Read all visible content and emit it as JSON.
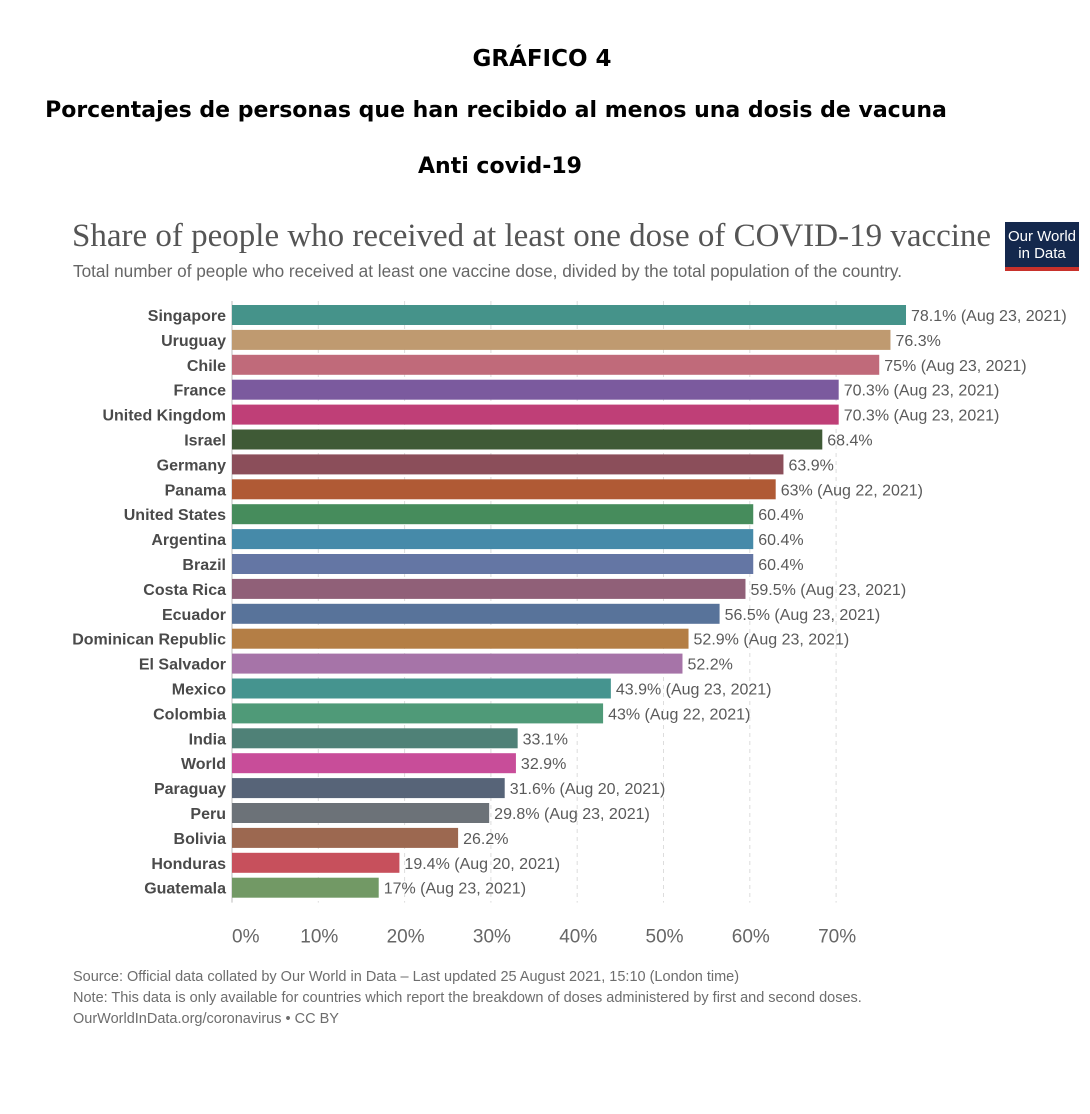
{
  "header": {
    "figure_label": "GRÁFICO 4",
    "title_line1": "Porcentajes de personas que han recibido al menos una dosis de vacuna",
    "title_line2": "Anti covid-19"
  },
  "logo": {
    "line1": "Our World",
    "line2": "in Data"
  },
  "footer": {
    "source": "Source: Official data collated by Our World in Data – Last updated 25 August 2021, 15:10 (London time)",
    "note": "Note: This data is only available for countries which report the breakdown of doses administered by first and second doses.",
    "url": "OurWorldInData.org/coronavirus • CC BY"
  },
  "chart_data": {
    "type": "bar",
    "orientation": "horizontal",
    "title": "Share of people who received at least one dose of COVID-19 vaccine",
    "subtitle": "Total number of people who received at least one vaccine dose, divided by the total population of the country.",
    "xlim": [
      0,
      80
    ],
    "xticks": [
      "0%",
      "10%",
      "20%",
      "30%",
      "40%",
      "50%",
      "60%",
      "70%"
    ],
    "grid": true,
    "categories": [
      "Singapore",
      "Uruguay",
      "Chile",
      "France",
      "United Kingdom",
      "Israel",
      "Germany",
      "Panama",
      "United States",
      "Argentina",
      "Brazil",
      "Costa Rica",
      "Ecuador",
      "Dominican Republic",
      "El Salvador",
      "Mexico",
      "Colombia",
      "India",
      "World",
      "Paraguay",
      "Peru",
      "Bolivia",
      "Honduras",
      "Guatemala"
    ],
    "values": [
      78.1,
      76.3,
      75,
      70.3,
      70.3,
      68.4,
      63.9,
      63,
      60.4,
      60.4,
      60.4,
      59.5,
      56.5,
      52.9,
      52.2,
      43.9,
      43,
      33.1,
      32.9,
      31.6,
      29.8,
      26.2,
      19.4,
      17
    ],
    "labels": [
      "78.1% (Aug 23, 2021)",
      "76.3%",
      "75% (Aug 23, 2021)",
      "70.3% (Aug 23, 2021)",
      "70.3% (Aug 23, 2021)",
      "68.4%",
      "63.9%",
      "63% (Aug 22, 2021)",
      "60.4%",
      "60.4%",
      "60.4%",
      "59.5% (Aug 23, 2021)",
      "56.5% (Aug 23, 2021)",
      "52.9% (Aug 23, 2021)",
      "52.2%",
      "43.9% (Aug 23, 2021)",
      "43% (Aug 22, 2021)",
      "33.1%",
      "32.9%",
      "31.6% (Aug 20, 2021)",
      "29.8% (Aug 23, 2021)",
      "26.2%",
      "19.4% (Aug 20, 2021)",
      "17% (Aug 23, 2021)"
    ],
    "colors": [
      "#45938a",
      "#bf9a70",
      "#c06a7a",
      "#7b5a9e",
      "#bf3f77",
      "#3f5a36",
      "#8b4e5a",
      "#b05a35",
      "#468c5c",
      "#468aa9",
      "#6476a4",
      "#906078",
      "#58739a",
      "#b47e45",
      "#a674a8",
      "#45948f",
      "#4f9a78",
      "#4f8177",
      "#c84d99",
      "#576478",
      "#6c7278",
      "#9c6850",
      "#c7505c",
      "#729965"
    ]
  }
}
